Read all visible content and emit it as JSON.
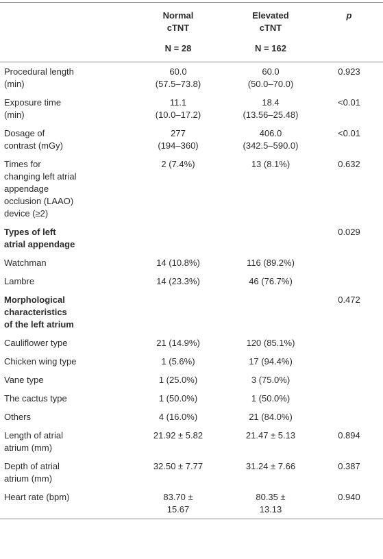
{
  "table": {
    "columns": [
      {
        "name": "Normal\ncTNT",
        "n": "N = 28"
      },
      {
        "name": "Elevated\ncTNT",
        "n": "N = 162"
      },
      {
        "name": "p"
      }
    ],
    "rows": [
      {
        "label": "Procedural length\n(min)",
        "normal": "60.0\n(57.5–73.8)",
        "elevated": "60.0\n(50.0–70.0)",
        "p": "0.923"
      },
      {
        "label": "Exposure time\n(min)",
        "normal": "11.1\n(10.0–17.2)",
        "elevated": "18.4\n(13.56–25.48)",
        "p": "<0.01"
      },
      {
        "label": "Dosage of\ncontrast (mGy)",
        "normal": "277\n(194–360)",
        "elevated": "406.0\n(342.5–590.0)",
        "p": "<0.01"
      },
      {
        "label": "Times for\nchanging left atrial\nappendage\nocclusion (LAAO)\ndevice (≥2)",
        "normal": "2 (7.4%)",
        "elevated": "13 (8.1%)",
        "p": "0.632"
      },
      {
        "label": "Types of left\natrial appendage",
        "bold": true,
        "p": "0.029"
      },
      {
        "label": "Watchman",
        "normal": "14 (10.8%)",
        "elevated": "116 (89.2%)"
      },
      {
        "label": "Lambre",
        "normal": "14 (23.3%)",
        "elevated": "46 (76.7%)"
      },
      {
        "label": "Morphological\ncharacteristics\nof the left atrium",
        "bold": true,
        "p": "0.472"
      },
      {
        "label": "Cauliflower type",
        "normal": "21 (14.9%)",
        "elevated": "120 (85.1%)"
      },
      {
        "label": "Chicken wing type",
        "normal": "1 (5.6%)",
        "elevated": "17 (94.4%)"
      },
      {
        "label": "Vane type",
        "normal": "1 (25.0%)",
        "elevated": "3 (75.0%)"
      },
      {
        "label": "The cactus type",
        "normal": "1 (50.0%)",
        "elevated": "1 (50.0%)"
      },
      {
        "label": "Others",
        "normal": "4 (16.0%)",
        "elevated": "21 (84.0%)"
      },
      {
        "label": "Length of atrial\natrium (mm)",
        "normal": "21.92 ± 5.82",
        "elevated": "21.47 ± 5.13",
        "p": "0.894"
      },
      {
        "label": "Depth of atrial\natrium (mm)",
        "normal": "32.50 ± 7.77",
        "elevated": "31.24 ± 7.66",
        "p": "0.387"
      },
      {
        "label": "Heart rate (bpm)",
        "normal": "83.70 ±\n15.67",
        "elevated": "80.35 ±\n13.13",
        "p": "0.940"
      }
    ]
  }
}
